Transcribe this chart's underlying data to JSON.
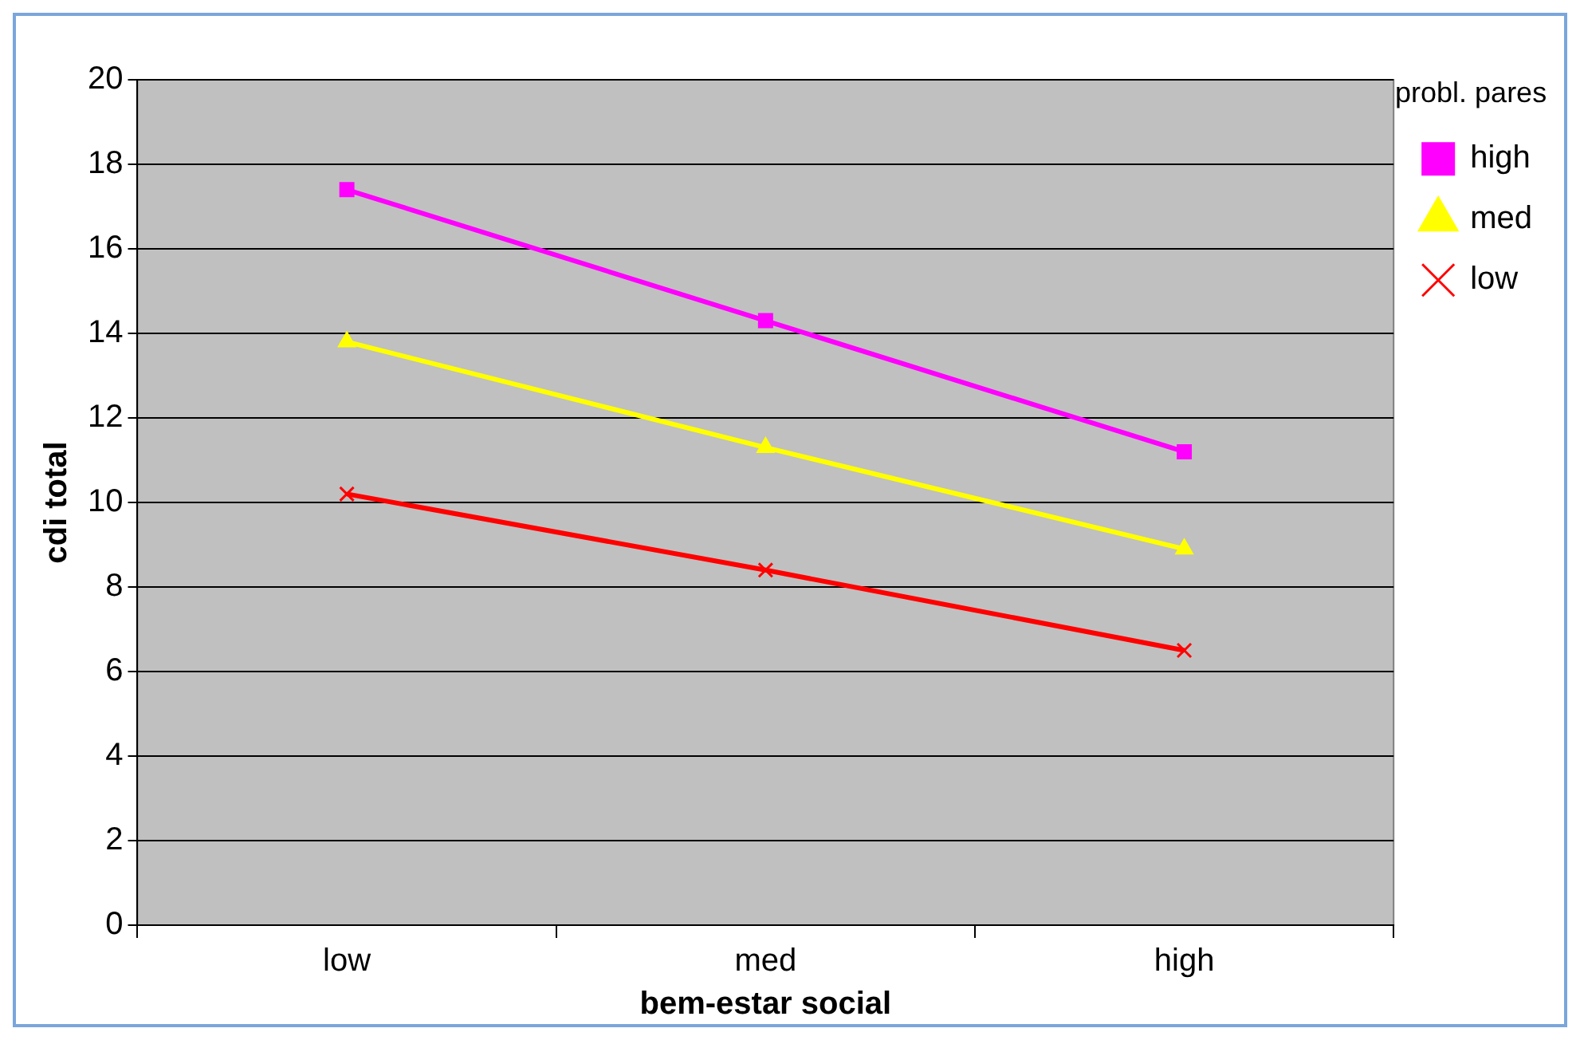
{
  "chart_data": {
    "type": "line",
    "xlabel": "bem-estar social",
    "ylabel": "cdi total",
    "legend_title": "probl. pares",
    "categories": [
      "low",
      "med",
      "high"
    ],
    "series": [
      {
        "name": "high",
        "color": "#ff00ff",
        "marker": "square",
        "values": [
          17.4,
          14.3,
          11.2
        ]
      },
      {
        "name": "med",
        "color": "#ffff00",
        "marker": "triangle",
        "values": [
          13.8,
          11.3,
          8.9
        ]
      },
      {
        "name": "low",
        "color": "#ff0000",
        "marker": "cross",
        "values": [
          10.2,
          8.4,
          6.5
        ]
      }
    ],
    "ylim": [
      0,
      20
    ],
    "yticks": [
      0,
      2,
      4,
      6,
      8,
      10,
      12,
      14,
      16,
      18,
      20
    ],
    "grid": "y",
    "legend": "top right"
  }
}
